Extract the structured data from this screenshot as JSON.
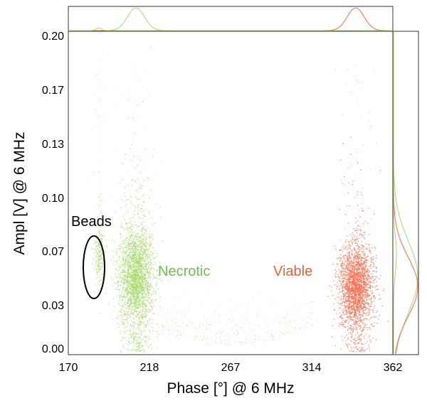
{
  "chart_data": {
    "type": "scatter",
    "title": "",
    "xlabel": "Phase [°] @ 6 MHz",
    "ylabel": "Ampl [V] @ 6 MHz",
    "xlim": [
      170,
      362
    ],
    "ylim": [
      0.0,
      0.2
    ],
    "x_ticks": [
      "170",
      "218",
      "267",
      "314",
      "362"
    ],
    "x_tick_values": [
      170,
      218,
      267,
      314,
      362
    ],
    "y_ticks": [
      "0.00",
      "0.03",
      "0.07",
      "0.10",
      "0.13",
      "0.17",
      "0.20"
    ],
    "y_tick_values": [
      0.0,
      0.0333,
      0.0667,
      0.1,
      0.1333,
      0.1667,
      0.2
    ],
    "grid": false,
    "marginal_distributions": {
      "top": "phase density",
      "right": "amplitude density"
    },
    "series": [
      {
        "name": "Necrotic",
        "color": "#a6d96a",
        "center": [
          210,
          0.048
        ],
        "spread": [
          5,
          0.016
        ],
        "points": 2600
      },
      {
        "name": "Viable",
        "color": "#fb6a4a",
        "center": [
          340,
          0.042
        ],
        "spread": [
          5,
          0.013
        ],
        "points": 2400
      },
      {
        "name": "Beads",
        "color": "#a6d96a",
        "center": [
          188,
          0.062
        ],
        "spread": [
          1.5,
          0.008
        ],
        "points": 220
      }
    ],
    "annotations": [
      {
        "text": "Beads",
        "color": "#000000",
        "encircled": true
      },
      {
        "text": "Necrotic",
        "color": "#6cc24a"
      },
      {
        "text": "Viable",
        "color": "#e8613c"
      }
    ]
  }
}
